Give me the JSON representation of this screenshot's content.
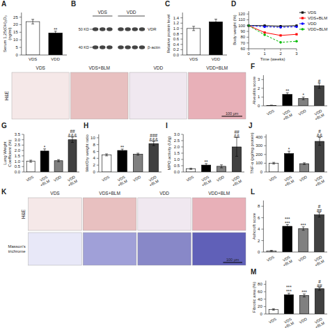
{
  "chart_data": [
    {
      "type": "bar",
      "title": "A",
      "ylabel": "Serum 1,25(OH)₂D₃\n(ng/ml)",
      "categories": [
        "VDS",
        "VDD"
      ],
      "values": [
        22.0,
        14.5
      ],
      "errors": [
        1.5,
        1.2
      ],
      "colors": [
        "white",
        "black"
      ],
      "ylim": [
        0,
        28
      ],
      "yticks": [
        0,
        5,
        10,
        15,
        20,
        25
      ],
      "annotations": [
        {
          "text": "**",
          "category": "VDD"
        }
      ]
    },
    {
      "type": "blot",
      "title": "B",
      "groups": [
        {
          "name": "VDS",
          "lanes": 3
        },
        {
          "name": "VDD",
          "lanes": 4
        }
      ],
      "bands": [
        {
          "name": "VDR",
          "marker": "50 KD"
        },
        {
          "name": "β-actin",
          "marker": "40 KD"
        }
      ]
    },
    {
      "type": "bar",
      "title": "C",
      "ylabel": "Relative protein level",
      "categories": [
        "VDS",
        "VDD"
      ],
      "values": [
        1.0,
        1.25
      ],
      "errors": [
        0.08,
        0.1
      ],
      "colors": [
        "white",
        "black"
      ],
      "ylim": [
        0.0,
        1.6
      ],
      "yticks": [
        {
          "value": 0.0,
          "label": "0.0"
        },
        0.2,
        0.4,
        0.6,
        0.8,
        {
          "value": 1.0,
          "label": "1.0"
        },
        1.2,
        1.4
      ]
    },
    {
      "type": "line",
      "title": "D",
      "xlabel": "Time (weeks)",
      "ylabel": "Body weight (%)",
      "x": [
        0,
        1,
        2,
        3
      ],
      "series": [
        {
          "name": "VDS",
          "color": "black",
          "line_style": "solid",
          "marker": "square",
          "values": [
            100,
            100,
            99,
            100
          ]
        },
        {
          "name": "VDS+BLM",
          "color": "red",
          "line_style": "solid",
          "marker": "square",
          "values": [
            100,
            88,
            83,
            85
          ]
        },
        {
          "name": "VDD",
          "color": "blue",
          "line_style": "dashed",
          "marker": "circle",
          "values": [
            100,
            98,
            97,
            98
          ]
        },
        {
          "name": "VDD+BLM",
          "color": "#00bb00",
          "line_style": "dashed",
          "marker": "circle",
          "values": [
            100,
            84,
            71,
            73
          ]
        }
      ],
      "xlim": [
        0,
        3
      ],
      "ylim": [
        60,
        125
      ],
      "xticks": [
        0,
        1,
        2,
        3
      ],
      "yticks": [
        60,
        70,
        80,
        90,
        100,
        110,
        120
      ],
      "legend": "upper right"
    },
    {
      "type": "image_grid",
      "columns": [
        "VDS",
        "VDS+BLM",
        "VDD",
        "VDD+BLM"
      ],
      "series": [
        {
          "name": "H&E",
          "colors": [
            "#f5e8e8",
            "#e8c0c0",
            "#f0e8f0",
            "#e8b0b8"
          ]
        }
      ],
      "annotations": [
        "100 μm"
      ]
    },
    {
      "type": "bar",
      "title": "F",
      "ylabel": "Alveolitis score",
      "categories": [
        "VDS",
        "VDS\n+BLM",
        "VDD",
        "VDD\n+BLM"
      ],
      "values": [
        0.05,
        1.3,
        0.85,
        2.3
      ],
      "errors": [
        0.03,
        0.2,
        0.15,
        0.3
      ],
      "colors": [
        "white",
        "black",
        "#808080",
        "#404040"
      ],
      "ylim": [
        0,
        3.5
      ],
      "yticks": [
        0,
        1,
        2,
        3
      ],
      "annotations": [
        {
          "text": "**",
          "category": "VDS\n+BLM"
        },
        {
          "text": "*",
          "category": "VDD"
        },
        {
          "text": "#",
          "category": "VDD\n+BLM"
        }
      ]
    },
    {
      "type": "bar",
      "title": "G",
      "ylabel": "Lung Weight\nCoefficient (%)",
      "categories": [
        "VDS",
        "VDS\n+BLM",
        "VDD",
        "VDD\n+BLM"
      ],
      "values": [
        1.0,
        1.95,
        1.05,
        3.0
      ],
      "errors": [
        0.1,
        0.2,
        0.1,
        0.25
      ],
      "colors": [
        "white",
        "black",
        "#808080",
        "#404040"
      ],
      "ylim": [
        0,
        3.5
      ],
      "yticks": [
        {
          "value": 0.0,
          "label": "0.0"
        },
        0.5,
        {
          "value": 1.0,
          "label": "1.0"
        },
        1.5,
        {
          "value": 2.0,
          "label": "2.0"
        },
        2.5,
        {
          "value": 3.0,
          "label": "3.0"
        },
        3.5
      ],
      "annotations": [
        {
          "text": "*",
          "category": "VDS\n+BLM"
        },
        {
          "text": "##\n&&&",
          "category": "VDD\n+BLM"
        }
      ]
    },
    {
      "type": "bar",
      "title": "H",
      "ylabel": "Wet/Dry weight ratio",
      "categories": [
        "VDS",
        "VDS\n+BLM",
        "VDD",
        "VDD\n+BLM"
      ],
      "values": [
        5.0,
        6.3,
        5.2,
        8.3
      ],
      "errors": [
        0.3,
        0.4,
        0.3,
        0.6
      ],
      "colors": [
        "white",
        "black",
        "#808080",
        "#404040"
      ],
      "ylim": [
        0,
        11
      ],
      "yticks": [
        0,
        2,
        4,
        6,
        8,
        10
      ],
      "annotations": [
        {
          "text": "**",
          "category": "VDS\n+BLM"
        },
        {
          "text": "###\n&&&",
          "category": "VDD\n+BLM"
        }
      ]
    },
    {
      "type": "bar",
      "title": "I",
      "ylabel": "MPO activity (U/g)",
      "categories": [
        "VDS",
        "VDS\n+BLM",
        "VDD",
        "VDD\n+BLM"
      ],
      "values": [
        0.25,
        0.55,
        0.45,
        2.0
      ],
      "errors": [
        0.05,
        0.12,
        0.12,
        0.75
      ],
      "colors": [
        "white",
        "black",
        "#808080",
        "#404040"
      ],
      "ylim": [
        0,
        3.0
      ],
      "yticks": [
        {
          "value": 0.0,
          "label": "0.0"
        },
        0.5,
        {
          "value": 1.0,
          "label": "1.0"
        },
        1.5,
        {
          "value": 2.0,
          "label": "2.0"
        },
        2.5,
        {
          "value": 3.0,
          "label": "3.0"
        }
      ],
      "annotations": [
        {
          "text": "**",
          "category": "VDS\n+BLM"
        },
        {
          "text": "##\n&&",
          "category": "VDD\n+BLM"
        }
      ]
    },
    {
      "type": "bar",
      "title": "J",
      "ylabel": "TNF-α (pg/mg protein)",
      "categories": [
        "VDS",
        "VDS\n+BLM",
        "VDD",
        "VDD\n+BLM"
      ],
      "values": [
        100,
        210,
        95,
        350
      ],
      "errors": [
        10,
        28,
        10,
        45
      ],
      "colors": [
        "white",
        "black",
        "#808080",
        "#404040"
      ],
      "ylim": [
        0,
        430
      ],
      "yticks": [
        0,
        100,
        200,
        300,
        400
      ],
      "annotations": [
        {
          "text": "*",
          "category": "VDS\n+BLM"
        },
        {
          "text": "#\n&&",
          "category": "VDD\n+BLM"
        }
      ]
    },
    {
      "type": "image_grid",
      "title": "K",
      "columns": [
        "VDS",
        "VDS+BLM",
        "VDD",
        "VDD+BLM"
      ],
      "series": [
        {
          "name": "H&E",
          "colors": [
            "#f5e8e8",
            "#e8c0c0",
            "#f0e8f0",
            "#e8b0b8"
          ]
        },
        {
          "name": "Masson's\ntrichrome",
          "colors": [
            "#e8e8f8",
            "#a0a0d8",
            "#8888c8",
            "#6060b8"
          ]
        }
      ],
      "annotations": [
        "100 μm"
      ]
    },
    {
      "type": "bar",
      "title": "L",
      "ylabel": "Ashcroft score",
      "categories": [
        "VDS",
        "VDS\n+BLM",
        "VDD",
        "VDD\n+BLM"
      ],
      "values": [
        0.2,
        4.5,
        4.1,
        6.5
      ],
      "errors": [
        0.1,
        0.3,
        0.3,
        0.4
      ],
      "colors": [
        "white",
        "black",
        "#808080",
        "#404040"
      ],
      "ylim": [
        0,
        9
      ],
      "yticks": [
        0,
        2,
        4,
        6,
        8
      ],
      "annotations": [
        {
          "text": "***\n***",
          "category": "VDS\n+BLM"
        },
        {
          "text": "***",
          "category": "VDD"
        },
        {
          "text": "#\n##",
          "category": "VDD\n+BLM"
        }
      ]
    },
    {
      "type": "bar",
      "title": "M",
      "ylabel": "Fibrotic area (%)",
      "categories": [
        "VDS",
        "VDS\n+BLM",
        "VDD",
        "VDD\n+BLM"
      ],
      "values": [
        12,
        52,
        50,
        68
      ],
      "errors": [
        2,
        4,
        4,
        4
      ],
      "colors": [
        "white",
        "black",
        "#808080",
        "#404040"
      ],
      "ylim": [
        0,
        90
      ],
      "yticks": [
        0,
        20,
        40,
        60,
        80
      ],
      "annotations": [
        {
          "text": "***\n***",
          "category": "VDS\n+BLM"
        },
        {
          "text": "***",
          "category": "VDD"
        },
        {
          "text": "#\n##",
          "category": "VDD\n+BLM"
        }
      ]
    }
  ]
}
